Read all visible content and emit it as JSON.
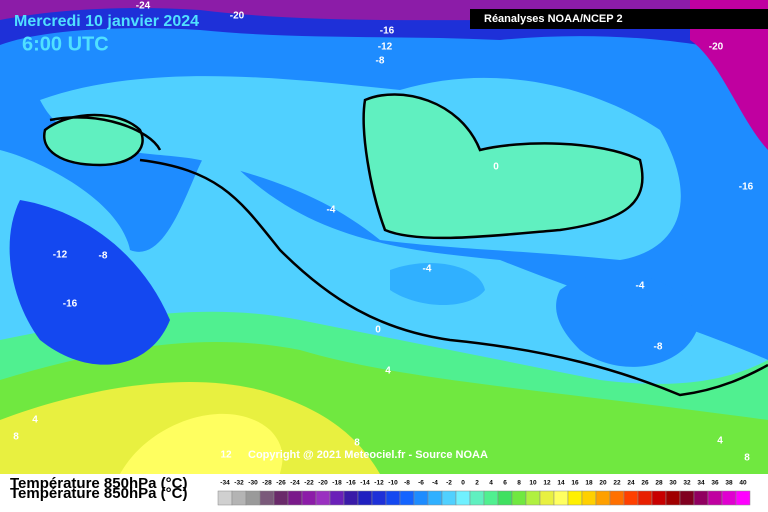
{
  "header": {
    "date": "Mercredi 10 janvier 2024",
    "time": "6:00 UTC",
    "source_box": "Réanalyses NOAA/NCEP 2"
  },
  "copyright": "Copyright @ 2021 Meteociel.fr - Source NOAA",
  "legend": {
    "title": "Température 850hPa (°C)",
    "ticks": [
      -34,
      -32,
      -30,
      -28,
      -26,
      -24,
      -22,
      -20,
      -18,
      -16,
      -14,
      -12,
      -10,
      -8,
      -6,
      -4,
      -2,
      0,
      2,
      4,
      6,
      8,
      10,
      12,
      14,
      16,
      18,
      20,
      22,
      24,
      26,
      28,
      30,
      32,
      34,
      36,
      38,
      40
    ],
    "colors": [
      "#d0d0d0",
      "#b4b4b4",
      "#9a9a9a",
      "#7a5a7a",
      "#6a2a6a",
      "#7a1a8a",
      "#8c1ca8",
      "#9a30c0",
      "#6a20b8",
      "#3a1aa8",
      "#2020c0",
      "#1e30d8",
      "#1448f0",
      "#1464ff",
      "#1e8cff",
      "#30b0ff",
      "#50d0ff",
      "#70f0ff",
      "#60f0c0",
      "#50f090",
      "#40e060",
      "#70e840",
      "#b0f040",
      "#e8f040",
      "#ffff60",
      "#fff000",
      "#ffd000",
      "#ffa000",
      "#ff7000",
      "#ff4000",
      "#e82000",
      "#c80000",
      "#a00000",
      "#800020",
      "#900060",
      "#c000a0",
      "#e000d0",
      "#ff00ff"
    ]
  },
  "contour_labels": [
    "-24",
    "-20",
    "-16",
    "-12",
    "-8",
    "-20",
    "-16",
    "0",
    "-4",
    "-12",
    "-8",
    "-16",
    "-4",
    "-4",
    "-8",
    "0",
    "4",
    "4",
    "8",
    "12",
    "8",
    "4",
    "8"
  ]
}
